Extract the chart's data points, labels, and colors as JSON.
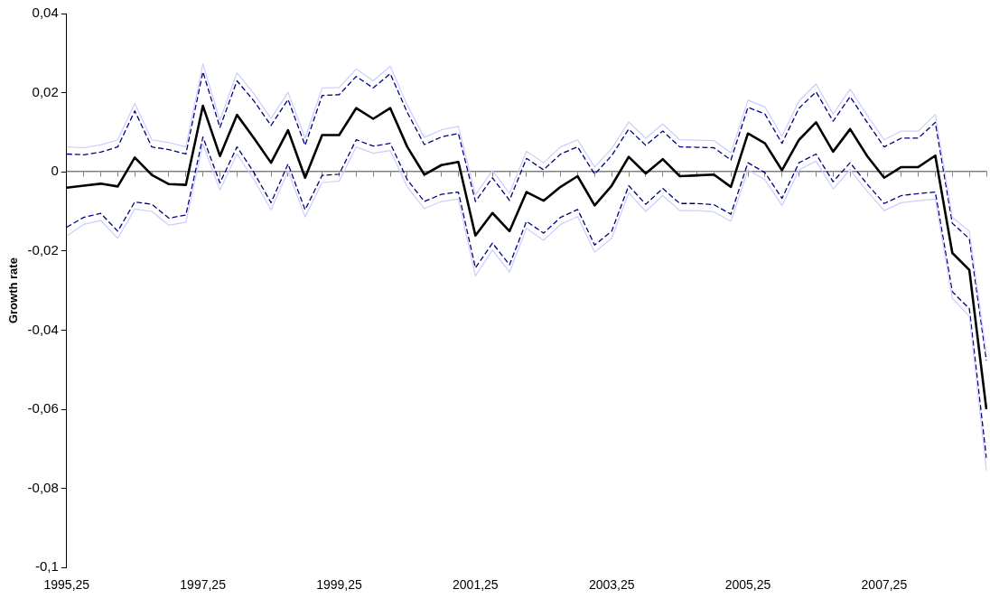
{
  "chart_data": {
    "type": "line",
    "ylabel": "Growth rate",
    "categories": [
      "1995,25",
      null,
      null,
      null,
      null,
      null,
      null,
      null,
      "1997,25",
      null,
      null,
      null,
      null,
      null,
      null,
      null,
      "1999,25",
      null,
      null,
      null,
      null,
      null,
      null,
      null,
      "2001,25",
      null,
      null,
      null,
      null,
      null,
      null,
      null,
      "2003,25",
      null,
      null,
      null,
      null,
      null,
      null,
      null,
      "2005,25",
      null,
      null,
      null,
      null,
      null,
      null,
      null,
      "2007,25",
      null,
      null,
      null,
      null,
      null,
      null
    ],
    "ylim": [
      -0.1,
      0.04
    ],
    "yticks": [
      {
        "value": 0.04,
        "label": "0,04"
      },
      {
        "value": 0.02,
        "label": "0,02"
      },
      {
        "value": 0,
        "label": "0"
      },
      {
        "value": -0.02,
        "label": "-0,02"
      },
      {
        "value": -0.04,
        "label": "-0,04"
      },
      {
        "value": -0.06,
        "label": "-0,06"
      },
      {
        "value": -0.08,
        "label": "-0,08"
      },
      {
        "value": -0.1,
        "label": "-0,1"
      }
    ],
    "marker": "none",
    "series": [
      {
        "color": "#ccccff",
        "line_style": "solid",
        "values": [
          0.0063,
          0.0061,
          0.0068,
          0.0081,
          0.0173,
          0.0081,
          0.0074,
          0.0063,
          0.0273,
          0.013,
          0.025,
          0.0197,
          0.0135,
          0.0201,
          0.0085,
          0.0212,
          0.0213,
          0.026,
          0.023,
          0.0267,
          0.0168,
          0.0087,
          0.0106,
          0.0115,
          -0.0058,
          0.0003,
          -0.0054,
          0.0052,
          0.0023,
          0.0063,
          0.0081,
          0.0012,
          0.0059,
          0.0126,
          0.0085,
          0.0121,
          0.0081,
          0.008,
          0.0079,
          0.0048,
          0.0181,
          0.0164,
          0.009,
          0.0179,
          0.0222,
          0.0146,
          0.0209,
          0.0143,
          0.0081,
          0.0103,
          0.0103,
          0.0145,
          -0.0115,
          -0.015,
          -0.046
        ]
      },
      {
        "color": "#ccccff",
        "line_style": "solid",
        "values": [
          -0.0162,
          -0.0133,
          -0.0123,
          -0.0168,
          -0.0094,
          -0.01,
          -0.0135,
          -0.0127,
          0.007,
          -0.0046,
          0.0045,
          -0.002,
          -0.0096,
          0.0002,
          -0.0114,
          -0.0027,
          -0.0024,
          0.0063,
          0.0047,
          0.0054,
          -0.0038,
          -0.0093,
          -0.0075,
          -0.0069,
          -0.0263,
          -0.0198,
          -0.0253,
          -0.0143,
          -0.0173,
          -0.0133,
          -0.0113,
          -0.0203,
          -0.0168,
          -0.0053,
          -0.01,
          -0.006,
          -0.0098,
          -0.0098,
          -0.0101,
          -0.0125,
          0.0005,
          -0.002,
          -0.0085,
          0.0005,
          0.0027,
          -0.0043,
          0.0005,
          -0.0049,
          -0.0098,
          -0.0078,
          -0.0073,
          -0.0069,
          -0.032,
          -0.0365,
          -0.0755
        ]
      },
      {
        "color": "#000080",
        "line_style": "dashed",
        "values": [
          0.0045,
          0.0043,
          0.005,
          0.0063,
          0.0154,
          0.0063,
          0.0056,
          0.0045,
          0.0253,
          0.0112,
          0.023,
          0.0179,
          0.0117,
          0.0183,
          0.0067,
          0.0193,
          0.0195,
          0.0241,
          0.0212,
          0.0248,
          0.015,
          0.0069,
          0.0088,
          0.0097,
          -0.0075,
          -0.0015,
          -0.0072,
          0.0034,
          0.0005,
          0.0045,
          0.0063,
          -0.0006,
          0.0041,
          0.0108,
          0.0067,
          0.0103,
          0.0063,
          0.0062,
          0.0061,
          0.003,
          0.0163,
          0.0146,
          0.0072,
          0.0161,
          0.0202,
          0.0128,
          0.019,
          0.0125,
          0.0063,
          0.0085,
          0.0085,
          0.0125,
          -0.013,
          -0.0169,
          -0.0477
        ]
      },
      {
        "color": "#000080",
        "line_style": "dashed",
        "values": [
          -0.014,
          -0.0115,
          -0.0105,
          -0.015,
          -0.0076,
          -0.0082,
          -0.0117,
          -0.0109,
          0.0088,
          -0.0028,
          0.0063,
          -0.0002,
          -0.0078,
          0.002,
          -0.0096,
          -0.0009,
          -0.0006,
          0.0081,
          0.0065,
          0.0072,
          -0.002,
          -0.0075,
          -0.0057,
          -0.0051,
          -0.0243,
          -0.018,
          -0.0235,
          -0.0125,
          -0.0155,
          -0.0115,
          -0.0095,
          -0.0185,
          -0.015,
          -0.0035,
          -0.0082,
          -0.0042,
          -0.008,
          -0.008,
          -0.0083,
          -0.0107,
          0.0023,
          -0.0002,
          -0.0067,
          0.0023,
          0.0045,
          -0.0025,
          0.0023,
          -0.0031,
          -0.008,
          -0.006,
          -0.0055,
          -0.0051,
          -0.0303,
          -0.0346,
          -0.0723
        ]
      },
      {
        "color": "#000000",
        "line_style": "solid",
        "values": [
          -0.004,
          -0.0035,
          -0.003,
          -0.0037,
          0.0036,
          -0.0008,
          -0.0031,
          -0.0033,
          0.0167,
          0.004,
          0.0144,
          0.0085,
          0.0023,
          0.0105,
          -0.0015,
          0.0093,
          0.0093,
          0.0161,
          0.0134,
          0.0161,
          0.0063,
          -0.0007,
          0.0017,
          0.0025,
          -0.0161,
          -0.0104,
          -0.015,
          -0.0051,
          -0.0073,
          -0.0038,
          -0.0011,
          -0.0085,
          -0.0035,
          0.0038,
          -0.0004,
          0.0032,
          -0.0011,
          -0.0009,
          -0.0007,
          -0.0038,
          0.0097,
          0.0072,
          0.0004,
          0.0081,
          0.0125,
          0.0051,
          0.0108,
          0.004,
          -0.0015,
          0.0012,
          0.0012,
          0.0041,
          -0.0205,
          -0.0248,
          -0.06
        ]
      }
    ]
  }
}
